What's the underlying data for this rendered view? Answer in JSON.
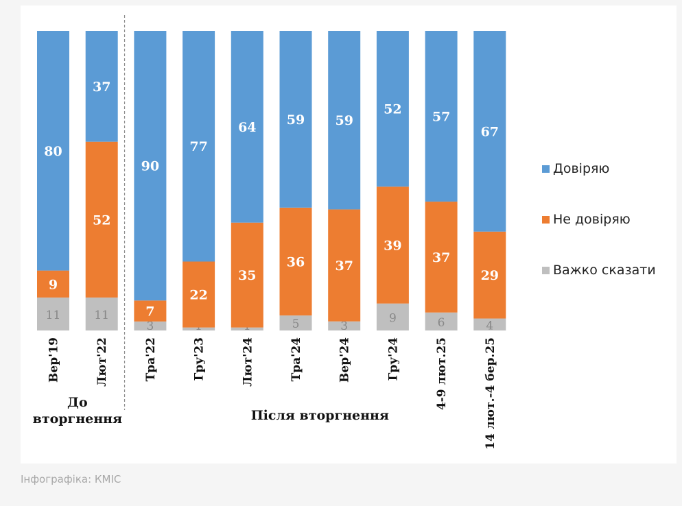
{
  "caption": "Інфографіка: КМІС",
  "colors": {
    "trust": "#5b9bd5",
    "distrust": "#ed7d31",
    "hard_to_say": "#bfbfbf"
  },
  "chart_data": {
    "type": "bar",
    "stacked": true,
    "categories": [
      "Вер'19",
      "Лют'22",
      "Тра'22",
      "Гру'23",
      "Лют'24",
      "Тра'24",
      "Вер'24",
      "Гру'24",
      "4-9 лют.25",
      "14 лют.-4 бер.25"
    ],
    "series": [
      {
        "name": "Довіряю",
        "values": [
          80,
          37,
          90,
          77,
          64,
          59,
          59,
          52,
          57,
          67
        ]
      },
      {
        "name": "Не довіряю",
        "values": [
          9,
          52,
          7,
          22,
          35,
          36,
          37,
          39,
          37,
          29
        ]
      },
      {
        "name": "Важко сказати",
        "values": [
          11,
          11,
          3,
          1,
          1,
          5,
          3,
          9,
          6,
          4
        ]
      }
    ],
    "groups": [
      {
        "label_lines": [
          "До",
          "вторгнення"
        ],
        "categories": [
          0,
          1
        ]
      },
      {
        "label_lines": [
          "Після вторгнення"
        ],
        "categories": [
          2,
          3,
          4,
          5,
          6,
          7,
          8,
          9
        ]
      }
    ],
    "legend": {
      "position": "right",
      "entries": [
        "Довіряю",
        "Не довіряю",
        "Важко сказати"
      ]
    },
    "ylim": [
      0,
      100
    ],
    "grid": false
  }
}
